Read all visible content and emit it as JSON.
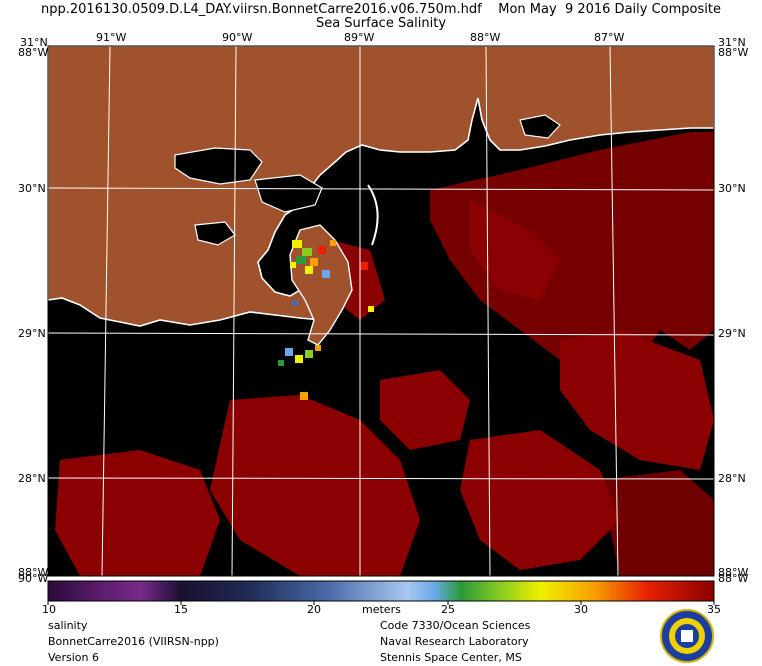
{
  "header": {
    "title": "npp.2016130.0509.D.L4_DAY.viirsn.BonnetCarre2016.v06.750m.hdf    Mon May  9 2016 Daily Composite",
    "subtitle": "Sea Surface Salinity"
  },
  "map": {
    "lon_labels": [
      "91°W",
      "90°W",
      "89°W",
      "88°W",
      "87°W"
    ],
    "lat_labels": [
      "30°N",
      "29°N",
      "28°N"
    ],
    "corner_labels": {
      "top_left_lat": "31°N",
      "top_left_lon": "88°W",
      "top_right_lat": "31°N",
      "top_right_lon": "88°W",
      "bottom_left_lat": "88°W",
      "bottom_left_lon": "90°W",
      "bottom_right_lat": "88°W",
      "bottom_right_lon": "88°W"
    },
    "colors": {
      "land": "#a0522d",
      "water_nodata": "#000000",
      "coastline": "#ffffff",
      "high_salinity": "#8b0000",
      "grid": "#ffffff"
    }
  },
  "colorbar": {
    "ticks": [
      "10",
      "15",
      "20",
      "25",
      "30",
      "35"
    ],
    "unit": "meters",
    "min": 10,
    "max": 35
  },
  "footer": {
    "left": [
      "salinity",
      "BonnetCarre2016 (VIIRSN-npp)",
      "Version 6"
    ],
    "center": [
      "Code 7330/Ocean Sciences",
      "Naval Research Laboratory",
      "Stennis Space Center, MS"
    ]
  },
  "logo": {
    "name": "navy-seal-icon"
  }
}
